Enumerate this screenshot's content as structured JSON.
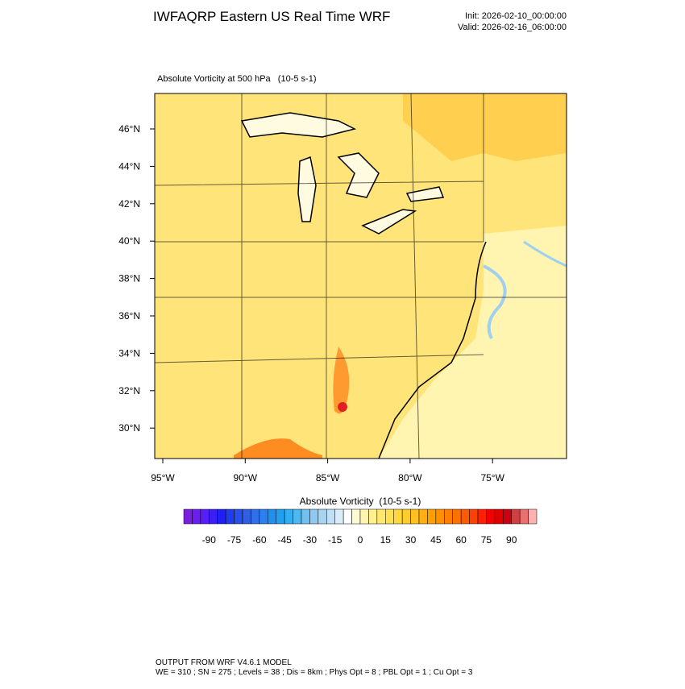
{
  "header": {
    "title": "IWFAQRP Eastern US Real Time WRF",
    "init": "Init: 2026-02-10_00:00:00",
    "valid": "Valid: 2026-02-16_06:00:00"
  },
  "map": {
    "field_title": "Absolute Vorticity at 500 hPa   (10-5 s-1)",
    "lat_labels": [
      "46°N",
      "44°N",
      "42°N",
      "40°N",
      "38°N",
      "36°N",
      "34°N",
      "32°N",
      "30°N"
    ],
    "lon_labels": [
      "95°W",
      "90°W",
      "85°W",
      "80°W",
      "75°W"
    ]
  },
  "colorbar": {
    "title": "Absolute Vorticity  (10-5 s-1)",
    "labels": [
      -90,
      -75,
      -60,
      -45,
      -30,
      -15,
      0,
      15,
      30,
      45,
      60,
      75,
      90
    ],
    "colors": [
      "#7a1fe0",
      "#6a1ff0",
      "#561ff5",
      "#3c1ff5",
      "#1f1ff5",
      "#1f3cf0",
      "#2a4ee8",
      "#305fe0",
      "#3070e8",
      "#2a80f0",
      "#1f90f0",
      "#20a0f0",
      "#30b0f0",
      "#50b8f0",
      "#70c0f0",
      "#90c8f0",
      "#a8d4f0",
      "#c0e0f8",
      "#d8ecfa",
      "#ffffff",
      "#fffbd0",
      "#fff5b0",
      "#fff090",
      "#ffe870",
      "#ffe050",
      "#ffd840",
      "#ffcc30",
      "#ffc020",
      "#ffb010",
      "#ffa000",
      "#ff9000",
      "#ff8000",
      "#ff7000",
      "#ff5a00",
      "#ff4000",
      "#ff2000",
      "#f00000",
      "#e00000",
      "#cc0010",
      "#d04040",
      "#e87070",
      "#ffb0b0"
    ]
  },
  "footer": {
    "line1": "OUTPUT FROM WRF V4.6.1 MODEL",
    "line2": "WE = 310 ; SN = 275 ; Levels = 38 ; Dis = 8km ; Phys Opt = 8 ; PBL Opt = 1 ; Cu Opt = 3"
  }
}
